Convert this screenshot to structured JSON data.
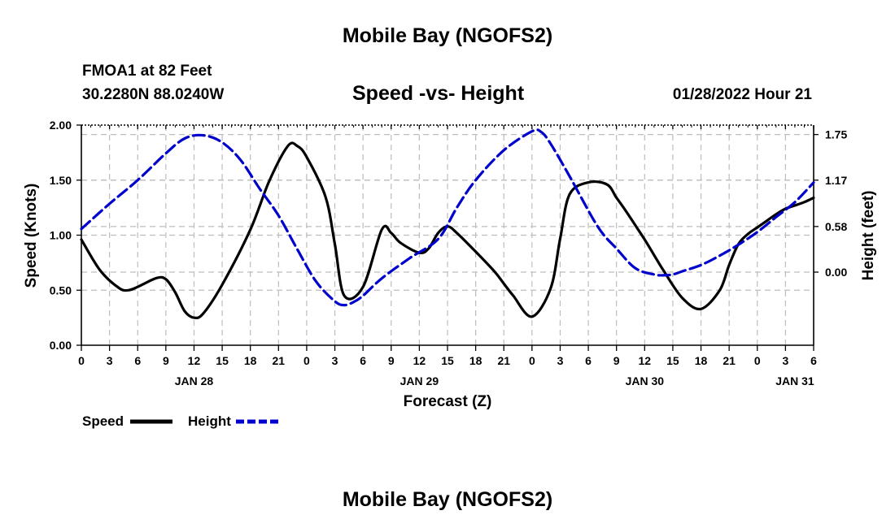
{
  "header": {
    "title": "Mobile Bay (NGOFS2)",
    "station": "FMOA1 at 82 Feet",
    "coords": "30.2280N  88.0240W",
    "subtitle": "Speed -vs- Height",
    "datetime": "01/28/2022 Hour 21"
  },
  "footer": {
    "title": "Mobile Bay (NGOFS2)"
  },
  "legend": [
    {
      "label": "Speed",
      "color": "#000000",
      "dashed": false
    },
    {
      "label": "Height",
      "color": "#0000cc",
      "dashed": true
    }
  ],
  "chart_data": {
    "type": "line",
    "title": "Speed -vs- Height",
    "xlabel": "Forecast (Z)",
    "ylabel_left": "Speed (Knots)",
    "ylabel_right": "Height (feet)",
    "x_unit": "hours since 2022-01-28 00Z",
    "xlim": [
      0,
      78
    ],
    "ylim_left": [
      0,
      2.0
    ],
    "ylim_right": [
      -0.93,
      1.87
    ],
    "x_tick_labels": [
      "0",
      "3",
      "6",
      "9",
      "12",
      "15",
      "18",
      "21",
      "0",
      "3",
      "6",
      "9",
      "12",
      "15",
      "18",
      "21",
      "0",
      "3",
      "6",
      "9",
      "12",
      "15",
      "18",
      "21",
      "0",
      "3",
      "6"
    ],
    "date_labels": [
      {
        "x": 12,
        "label": "JAN 28"
      },
      {
        "x": 36,
        "label": "JAN 29"
      },
      {
        "x": 60,
        "label": "JAN 30"
      },
      {
        "x": 76,
        "label": "JAN 31"
      }
    ],
    "left_ticks": [
      {
        "value": 0.0,
        "label": "0.00"
      },
      {
        "value": 0.5,
        "label": "0.50"
      },
      {
        "value": 1.0,
        "label": "1.00"
      },
      {
        "value": 1.5,
        "label": "1.50"
      },
      {
        "value": 2.0,
        "label": "2.00"
      }
    ],
    "right_ticks": [
      {
        "value": 0.0,
        "label": "0.00"
      },
      {
        "value": 0.58,
        "label": "0.58"
      },
      {
        "value": 1.17,
        "label": "1.17"
      },
      {
        "value": 1.75,
        "label": "1.75"
      }
    ],
    "grid": true,
    "series": [
      {
        "name": "Speed",
        "axis": "left",
        "color": "#000000",
        "dashed": false,
        "x": [
          0,
          2,
          4,
          5,
          6,
          8,
          9,
          10,
          11,
          12,
          13,
          15,
          18,
          20,
          22,
          23,
          24,
          26,
          27,
          28,
          30,
          32,
          33,
          34,
          36,
          37,
          38,
          39,
          40,
          42,
          44,
          45,
          46,
          48,
          50,
          51,
          52,
          54,
          56,
          57,
          58,
          59,
          60,
          61,
          62,
          64,
          66,
          68,
          69,
          70,
          71,
          72,
          73,
          74,
          75,
          76,
          77,
          78
        ],
        "y": [
          0.96,
          0.68,
          0.52,
          0.5,
          0.53,
          0.61,
          0.6,
          0.48,
          0.31,
          0.25,
          0.29,
          0.55,
          1.05,
          1.49,
          1.81,
          1.81,
          1.71,
          1.35,
          0.92,
          0.45,
          0.53,
          1.05,
          1.02,
          0.93,
          0.84,
          0.88,
          1.02,
          1.08,
          1.02,
          0.85,
          0.67,
          0.56,
          0.45,
          0.26,
          0.52,
          0.97,
          1.37,
          1.48,
          1.46,
          1.34,
          1.22,
          1.09,
          0.96,
          0.82,
          0.68,
          0.43,
          0.33,
          0.5,
          0.73,
          0.92,
          1.01,
          1.07,
          1.13,
          1.19,
          1.24,
          1.27,
          1.3,
          1.34
        ]
      },
      {
        "name": "Height",
        "axis": "right",
        "color": "#0000cc",
        "dashed": true,
        "x": [
          0,
          3,
          6,
          9,
          11,
          13,
          15,
          17,
          19,
          21,
          23,
          25,
          27,
          28,
          29,
          30,
          32,
          35,
          38,
          40,
          42,
          45,
          48,
          49,
          50,
          52,
          55,
          57,
          59,
          61,
          62,
          63,
          64,
          66,
          68,
          70,
          72,
          74,
          76,
          78
        ],
        "y": [
          0.55,
          0.87,
          1.17,
          1.51,
          1.7,
          1.74,
          1.65,
          1.42,
          1.06,
          0.72,
          0.29,
          -0.12,
          -0.37,
          -0.42,
          -0.38,
          -0.3,
          -0.08,
          0.18,
          0.42,
          0.82,
          1.17,
          1.55,
          1.79,
          1.78,
          1.63,
          1.22,
          0.58,
          0.3,
          0.05,
          -0.03,
          -0.04,
          -0.03,
          0.01,
          0.09,
          0.21,
          0.35,
          0.51,
          0.7,
          0.89,
          1.14
        ]
      }
    ]
  }
}
